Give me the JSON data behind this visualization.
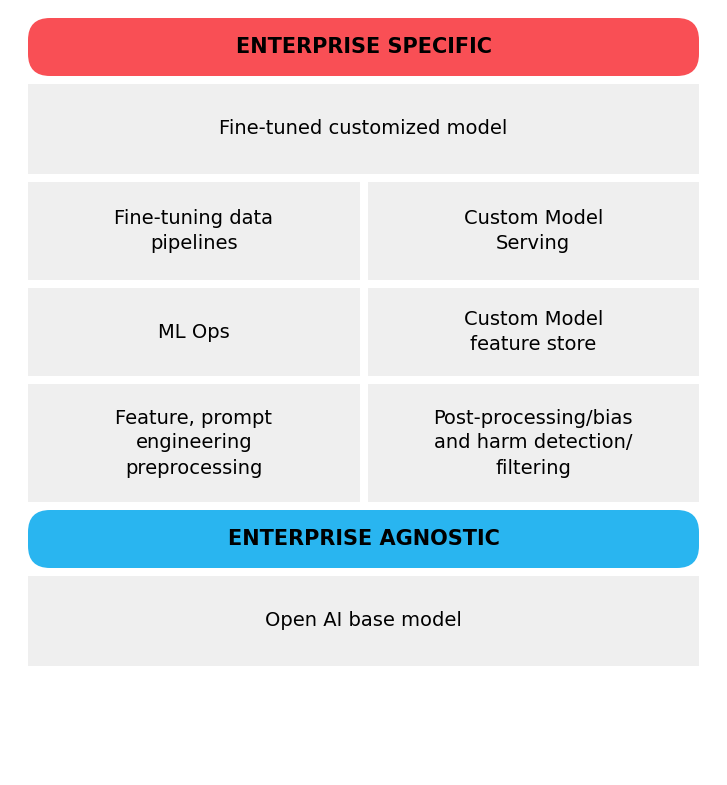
{
  "background_color": "#ffffff",
  "cell_bg_color": "#efefef",
  "banner_red_color": "#f94f55",
  "banner_blue_color": "#29b5f0",
  "banner_text_color": "#000000",
  "cell_text_color": "#000000",
  "banner1_text": "ENTERPRISE SPECIFIC",
  "banner2_text": "ENTERPRISE AGNOSTIC",
  "full_width_cell1": "Fine-tuned customized model",
  "full_width_cell2": "Open AI base model",
  "grid_cells": [
    [
      "Fine-tuning data\npipelines",
      "Custom Model\nServing"
    ],
    [
      "ML Ops",
      "Custom Model\nfeature store"
    ],
    [
      "Feature, prompt\nengineering\npreprocessing",
      "Post-processing/bias\nand harm detection/\nfiltering"
    ]
  ],
  "banner_fontsize": 15,
  "cell_fontsize": 14,
  "figsize": [
    7.27,
    7.85
  ],
  "dpi": 100
}
